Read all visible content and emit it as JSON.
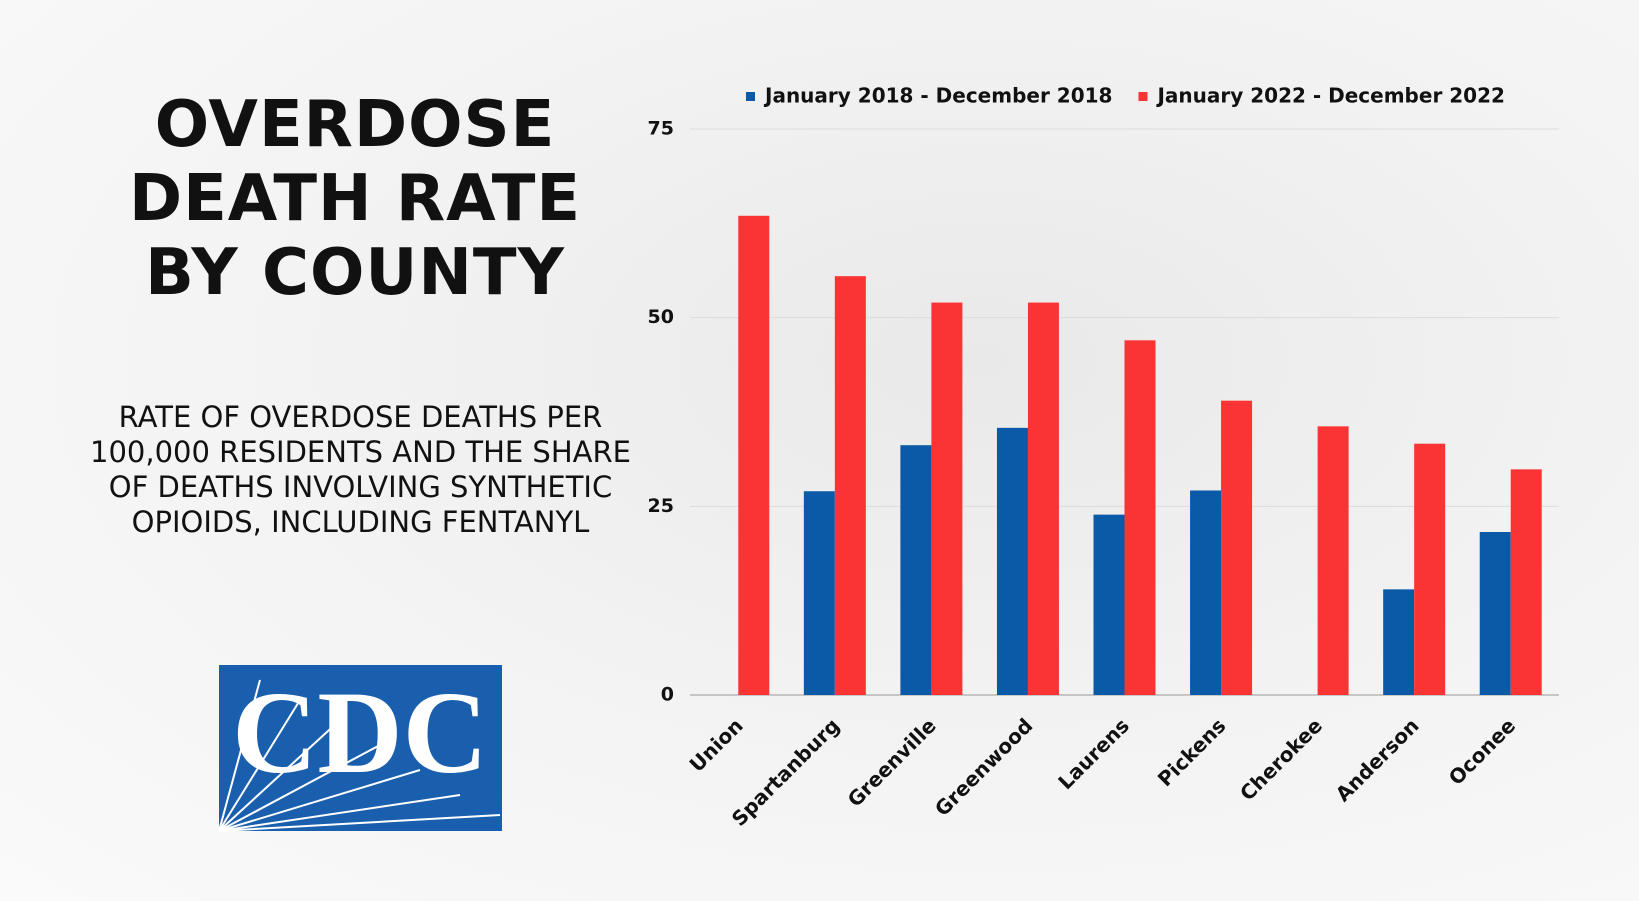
{
  "chart_data": {
    "type": "bar",
    "title": "OVERDOSE DEATH RATE BY COUNTY",
    "subtitle": "RATE OF OVERDOSE DEATHS PER 100,000 RESIDENTS AND THE SHARE OF DEATHS INVOLVING SYNTHETIC OPIOIDS, INCLUDING FENTANYL",
    "categories": [
      "Union",
      "Spartanburg",
      "Greenville",
      "Greenwood",
      "Laurens",
      "Pickens",
      "Cherokee",
      "Anderson",
      "Oconee"
    ],
    "series": [
      {
        "name": "January 2018 - December 2018",
        "color": "#0b5aa8",
        "values": [
          null,
          27.0,
          33.1,
          35.4,
          23.9,
          27.1,
          null,
          14.0,
          21.6
        ]
      },
      {
        "name": "January 2022 - December 2022",
        "color": "#fa3434",
        "values": [
          63.5,
          55.5,
          52.0,
          52.0,
          47.0,
          39.0,
          35.6,
          33.3,
          29.9
        ]
      }
    ],
    "ylim": [
      0,
      75
    ],
    "yticks": [
      0,
      25,
      50,
      75
    ],
    "grid": true,
    "legend": "top"
  },
  "logo": {
    "text": "CDC"
  }
}
